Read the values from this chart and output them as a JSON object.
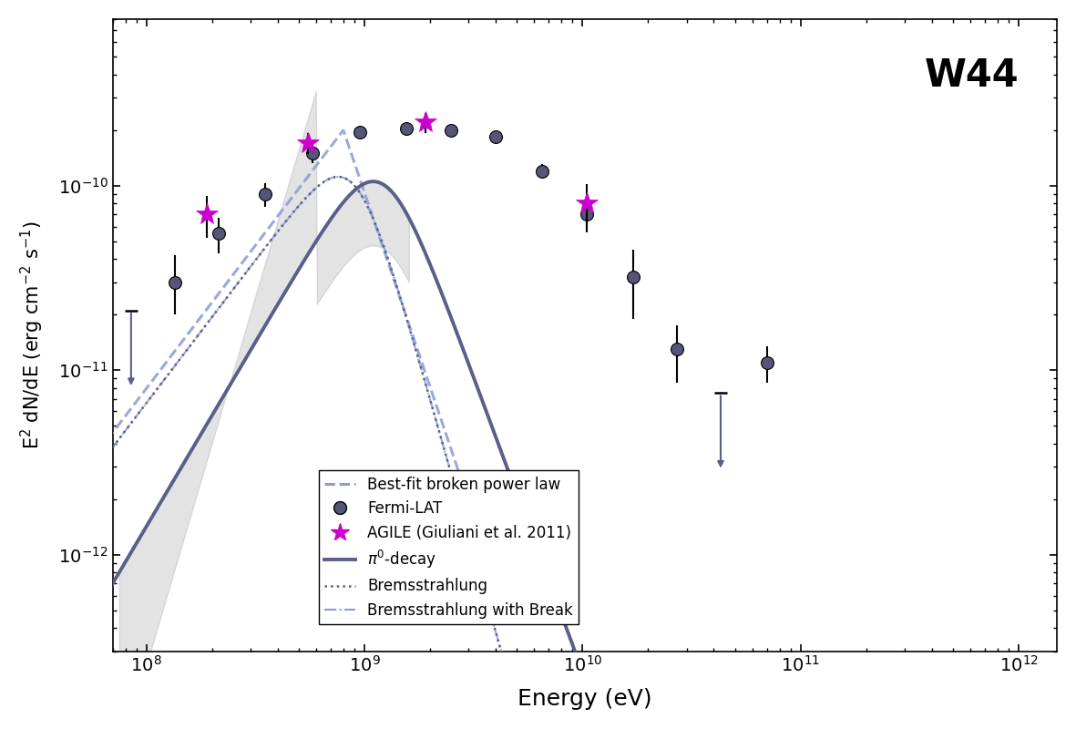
{
  "title": "W44",
  "xlabel": "Energy (eV)",
  "ylabel": "E$^2$ dN/dE (erg cm$^{-2}$ s$^{-1}$)",
  "xlim": [
    70000000.0,
    1500000000000.0
  ],
  "ylim": [
    3e-13,
    8e-10
  ],
  "bg_color": "#ffffff",
  "line_color_dark": "#5a5f8a",
  "line_color_light": "#8a9ad4",
  "fermi_color": "#555577",
  "agile_color": "#cc00cc",
  "fermi_points": {
    "x": [
      85000000.0,
      135000000.0,
      215000000.0,
      350000000.0,
      580000000.0,
      950000000.0,
      1550000000.0,
      2500000000.0,
      4000000000.0,
      6500000000.0,
      10500000000.0,
      17000000000.0,
      27000000000.0,
      43000000000.0,
      70000000000.0
    ],
    "y": [
      2.1e-11,
      3e-11,
      5.5e-11,
      9e-11,
      1.5e-10,
      1.95e-10,
      2.05e-10,
      2e-10,
      1.85e-10,
      1.2e-10,
      7e-11,
      3.2e-11,
      1.3e-11,
      7.5e-12,
      1.1e-11
    ],
    "yerr_lo": [
      8e-12,
      1e-11,
      1.2e-11,
      1.3e-11,
      1.8e-11,
      1.6e-11,
      1.6e-11,
      1.4e-11,
      1.4e-11,
      1.1e-11,
      1.4e-11,
      1.3e-11,
      4.5e-12,
      3.5e-12,
      2.5e-12
    ],
    "yerr_hi": [
      1.2e-11,
      1.2e-11,
      1.2e-11,
      1.3e-11,
      1.8e-11,
      1.6e-11,
      1.6e-11,
      1.4e-11,
      1.4e-11,
      1.1e-11,
      1.4e-11,
      1.3e-11,
      4.5e-12,
      3.5e-12,
      2.5e-12
    ],
    "upper_limit_mask": [
      true,
      false,
      false,
      false,
      false,
      false,
      false,
      false,
      false,
      false,
      false,
      false,
      false,
      true,
      false
    ]
  },
  "agile_points": {
    "x": [
      190000000.0,
      550000000.0,
      1900000000.0,
      10500000000.0
    ],
    "y": [
      7e-11,
      1.7e-10,
      2.2e-10,
      8e-11
    ],
    "yerr_lo": [
      1.8e-11,
      2.2e-11,
      2.8e-11,
      2.2e-11
    ],
    "yerr_hi": [
      1.8e-11,
      2.2e-11,
      2.8e-11,
      2.2e-11
    ],
    "upper_limit_mask": [
      false,
      false,
      false,
      false
    ]
  }
}
